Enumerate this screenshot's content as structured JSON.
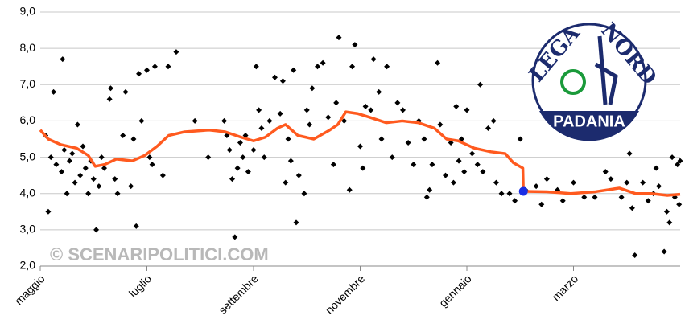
{
  "chart_data": {
    "type": "scatter",
    "xlim": [
      0,
      12
    ],
    "xticks": [
      {
        "value": 0,
        "label": "maggio"
      },
      {
        "value": 2,
        "label": "luglio"
      },
      {
        "value": 4,
        "label": "settembre"
      },
      {
        "value": 6,
        "label": "novembre"
      },
      {
        "value": 8,
        "label": "gennaio"
      },
      {
        "value": 10,
        "label": "marzo"
      }
    ],
    "ylim": [
      2,
      9
    ],
    "yticks": [
      {
        "value": 2,
        "label": "2,0"
      },
      {
        "value": 3,
        "label": "3,0"
      },
      {
        "value": 4,
        "label": "4,0"
      },
      {
        "value": 5,
        "label": "5,0"
      },
      {
        "value": 6,
        "label": "6,0"
      },
      {
        "value": 7,
        "label": "7,0"
      },
      {
        "value": 8,
        "label": "8,0"
      },
      {
        "value": 9,
        "label": "9,0"
      }
    ],
    "grid": true,
    "annotation": "© SCENARIPOLITICI.COM",
    "series": [
      {
        "type": "scatter",
        "color": "#000000",
        "x": [
          0.1,
          0.2,
          0.15,
          0.25,
          0.3,
          0.4,
          0.45,
          0.42,
          0.5,
          0.55,
          0.6,
          0.65,
          0.7,
          0.75,
          0.8,
          0.85,
          0.9,
          0.95,
          1.0,
          1.05,
          1.1,
          1.15,
          1.2,
          1.3,
          1.32,
          1.4,
          1.45,
          1.55,
          1.6,
          1.7,
          1.75,
          1.8,
          1.85,
          1.9,
          2.0,
          2.05,
          2.1,
          2.15,
          2.3,
          2.4,
          2.55,
          2.9,
          3.15,
          3.45,
          3.5,
          3.55,
          3.6,
          3.65,
          3.7,
          3.75,
          3.8,
          3.85,
          3.9,
          4.0,
          4.05,
          4.1,
          4.15,
          4.2,
          4.3,
          4.4,
          4.5,
          4.55,
          4.6,
          4.65,
          4.7,
          4.75,
          4.8,
          4.85,
          4.95,
          5.0,
          5.05,
          5.1,
          5.2,
          5.3,
          5.4,
          5.5,
          5.55,
          5.6,
          5.7,
          5.8,
          5.85,
          5.9,
          6.0,
          6.05,
          6.1,
          6.2,
          6.25,
          6.35,
          6.4,
          6.5,
          6.6,
          6.7,
          6.8,
          6.9,
          7.0,
          7.1,
          7.2,
          7.25,
          7.3,
          7.35,
          7.45,
          7.5,
          7.6,
          7.7,
          7.75,
          7.8,
          7.85,
          7.9,
          7.95,
          8.0,
          8.1,
          8.2,
          8.25,
          8.3,
          8.4,
          8.5,
          8.55,
          8.65,
          8.8,
          8.9,
          9.0,
          9.1,
          9.3,
          9.4,
          9.5,
          9.7,
          9.8,
          10.0,
          10.2,
          10.4,
          10.6,
          10.7,
          10.9,
          11.0,
          11.05,
          11.1,
          11.15,
          11.3,
          11.4,
          11.5,
          11.55,
          11.6,
          11.7,
          11.75,
          11.8,
          11.85,
          11.9,
          11.95,
          12.0,
          11.98
        ],
        "values": [
          5.6,
          5.0,
          3.5,
          6.8,
          4.8,
          4.6,
          5.2,
          7.7,
          4.0,
          4.9,
          5.1,
          4.3,
          5.9,
          4.5,
          5.3,
          4.7,
          4.0,
          4.9,
          4.4,
          3.0,
          4.2,
          5.0,
          4.7,
          6.6,
          6.9,
          4.4,
          4.0,
          5.6,
          6.8,
          4.2,
          5.5,
          3.1,
          7.3,
          6.0,
          7.4,
          5.0,
          4.8,
          7.5,
          4.5,
          7.5,
          7.9,
          6.0,
          5.0,
          6.0,
          5.6,
          5.2,
          4.4,
          2.8,
          4.7,
          5.4,
          5.0,
          5.6,
          4.6,
          5.2,
          7.5,
          6.3,
          5.8,
          5.0,
          6.0,
          7.2,
          6.2,
          7.1,
          4.3,
          5.5,
          4.9,
          7.4,
          3.2,
          4.5,
          4.0,
          6.3,
          5.9,
          6.9,
          7.5,
          7.6,
          6.1,
          4.8,
          6.5,
          8.3,
          6.0,
          4.1,
          7.5,
          8.1,
          5.3,
          4.7,
          6.4,
          6.3,
          7.7,
          6.8,
          5.5,
          7.5,
          5.0,
          6.5,
          6.3,
          5.4,
          4.8,
          6.0,
          5.5,
          3.9,
          4.1,
          4.8,
          7.6,
          5.9,
          4.5,
          5.4,
          4.3,
          6.4,
          4.9,
          5.5,
          4.6,
          6.3,
          5.1,
          4.8,
          7.0,
          4.6,
          5.8,
          6.0,
          4.3,
          4.0,
          4.0,
          3.8,
          5.5,
          4.1,
          4.2,
          3.7,
          4.4,
          4.1,
          3.8,
          4.3,
          3.9,
          3.9,
          4.6,
          4.4,
          3.9,
          4.3,
          5.1,
          3.6,
          2.3,
          4.3,
          3.8,
          4.0,
          4.7,
          4.2,
          2.4,
          3.5,
          3.2,
          5.0,
          3.9,
          4.8,
          4.9,
          3.7
        ]
      },
      {
        "type": "line",
        "color": "#ff5a1f",
        "x": [
          0,
          0.15,
          0.38,
          0.68,
          0.9,
          1.03,
          1.21,
          1.43,
          1.73,
          1.96,
          2.19,
          2.41,
          2.71,
          3.17,
          3.47,
          3.77,
          4.0,
          4.22,
          4.45,
          4.6,
          4.83,
          5.13,
          5.43,
          5.58,
          5.73,
          5.96,
          6.18,
          6.49,
          6.79,
          7.09,
          7.39,
          7.62,
          7.84,
          8.14,
          8.45,
          8.72,
          8.87,
          9.05,
          9.06,
          9.5,
          9.95,
          10.41,
          10.86,
          11.16,
          11.46,
          11.76,
          12.0
        ],
        "values": [
          5.75,
          5.5,
          5.35,
          5.25,
          5.05,
          4.75,
          4.8,
          4.95,
          4.9,
          5.05,
          5.3,
          5.6,
          5.7,
          5.75,
          5.7,
          5.55,
          5.45,
          5.55,
          5.8,
          5.9,
          5.6,
          5.5,
          5.75,
          5.9,
          6.25,
          6.2,
          6.1,
          5.95,
          6.0,
          5.95,
          5.8,
          5.5,
          5.45,
          5.25,
          5.15,
          5.1,
          4.85,
          4.7,
          4.06,
          4.05,
          4.0,
          4.05,
          4.15,
          4.0,
          4.0,
          3.95,
          3.98
        ]
      },
      {
        "type": "marker",
        "color": "#1a2ee6",
        "x": [
          9.06
        ],
        "values": [
          4.06
        ]
      }
    ]
  },
  "logo": {
    "top_left": "LEGA",
    "top_right": "NORD",
    "bottom": "PADANIA"
  }
}
